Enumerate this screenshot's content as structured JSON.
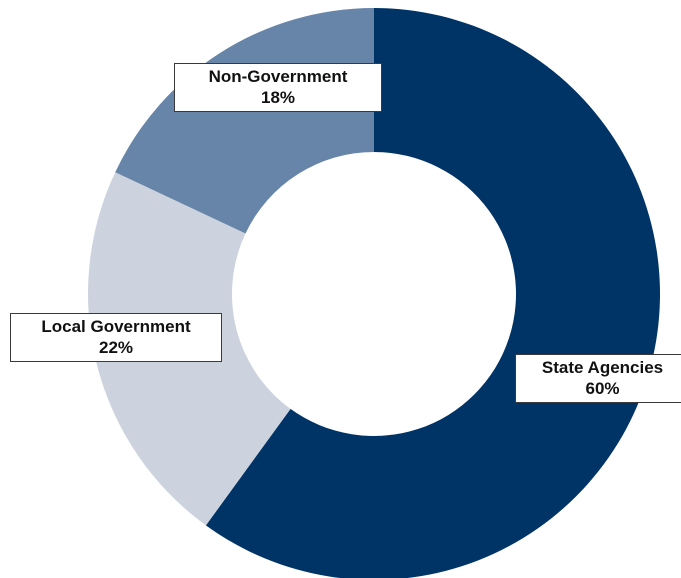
{
  "chart_data": {
    "type": "pie",
    "title": "",
    "donut": true,
    "slices": [
      {
        "name": "State Agencies",
        "value": 60,
        "value_label": "60%",
        "color": "#003366"
      },
      {
        "name": "Local Government",
        "value": 22,
        "value_label": "22%",
        "color": "#ccd3de"
      },
      {
        "name": "Non-Government",
        "value": 18,
        "value_label": "18%",
        "color": "#6785a8"
      }
    ],
    "start_angle_deg": 0,
    "direction": "clockwise",
    "legend": "none"
  }
}
